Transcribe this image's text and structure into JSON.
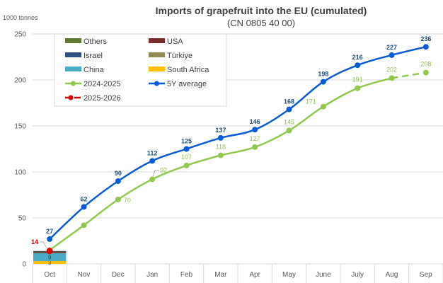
{
  "chart_data": {
    "type": "line",
    "title": "Imports of grapefruit into the EU (cumulated)",
    "subtitle": "(CN 0805 40 00)",
    "ylabel": "1000 tonnes",
    "xlabel": "",
    "ylim": [
      0,
      250
    ],
    "yticks": [
      0,
      50,
      100,
      150,
      200,
      250
    ],
    "grid": true,
    "legend_position": "top-left",
    "categories": [
      "Oct",
      "Nov",
      "Dec",
      "Jan",
      "Feb",
      "Mar",
      "Apr",
      "May",
      "June",
      "July",
      "Aug",
      "Sep"
    ],
    "series": [
      {
        "name": "5Y average",
        "kind": "line",
        "color": "#0a5bd6",
        "values": [
          27,
          62,
          90,
          112,
          125,
          137,
          146,
          168,
          198,
          216,
          227,
          236
        ],
        "labels": [
          "27",
          "62",
          "90",
          "112",
          "125",
          "137",
          "146",
          "168",
          "198",
          "216",
          "227",
          "236"
        ]
      },
      {
        "name": "2024-2025",
        "kind": "line",
        "color": "#92c850",
        "values": [
          15,
          42,
          70,
          92,
          107,
          118,
          127,
          145,
          171,
          191,
          202,
          208
        ],
        "labels": [
          "",
          "",
          "70",
          "92",
          "107",
          "118",
          "127",
          "145",
          "171",
          "191",
          "202",
          "208"
        ],
        "dashed_from_index": 10
      },
      {
        "name": "2025-2026",
        "kind": "line",
        "color": "#e00000",
        "dashed": true,
        "values": [
          14
        ],
        "labels": [
          "14"
        ]
      }
    ],
    "stacked_bars": {
      "category": "Oct",
      "segments": [
        {
          "name": "South Africa",
          "color": "#ffc000",
          "value": 3,
          "label": "3"
        },
        {
          "name": "China",
          "color": "#4bacc6",
          "value": 9,
          "label": "9"
        },
        {
          "name": "Türkiye",
          "color": "#948a54",
          "value": 0.3,
          "label": ""
        },
        {
          "name": "Israel",
          "color": "#1f3864",
          "value": 0.5,
          "label": ""
        },
        {
          "name": "USA",
          "color": "#7b2c2c",
          "value": 0.2,
          "label": ""
        },
        {
          "name": "Others",
          "color": "#4f4f4f",
          "value": 1,
          "label": ""
        }
      ]
    },
    "legend": [
      {
        "label": "Others",
        "type": "box",
        "color": "#5f7a35"
      },
      {
        "label": "USA",
        "type": "box",
        "color": "#7b2c2c"
      },
      {
        "label": "Israel",
        "type": "box",
        "color": "#2f4f7f"
      },
      {
        "label": "Türkiye",
        "type": "box",
        "color": "#948a54"
      },
      {
        "label": "China",
        "type": "box",
        "color": "#4bacc6"
      },
      {
        "label": "South Africa",
        "type": "box",
        "color": "#ffc000"
      },
      {
        "label": "2024-2025",
        "type": "line",
        "color": "#92c850"
      },
      {
        "label": "5Y average",
        "type": "line",
        "color": "#0a5bd6"
      },
      {
        "label": "2025-2026",
        "type": "dashline",
        "color": "#e00000"
      }
    ]
  }
}
